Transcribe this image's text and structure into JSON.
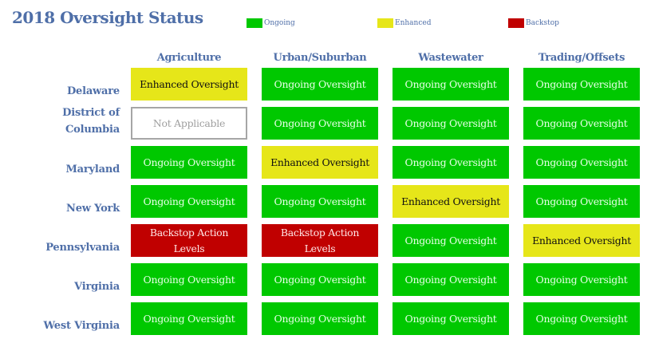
{
  "title": "2018 Oversight Status",
  "legend": [
    {
      "label": "Ongoing",
      "color": "#00c800"
    },
    {
      "label": "Enhanced",
      "color": "#e6e619"
    },
    {
      "label": "Backstop",
      "color": "#c00000"
    }
  ],
  "columns": [
    "Agriculture",
    "Urban/Suburban",
    "Wastewater",
    "Trading/Offsets"
  ],
  "rows": [
    {
      "label": "Delaware",
      "cells": [
        {
          "text": "Enhanced Oversight",
          "status": "enhanced"
        },
        {
          "text": "Ongoing Oversight",
          "status": "ongoing"
        },
        {
          "text": "Ongoing Oversight",
          "status": "ongoing"
        },
        {
          "text": "Ongoing Oversight",
          "status": "ongoing"
        }
      ]
    },
    {
      "label": "District of Columbia",
      "cells": [
        {
          "text": "Not Applicable",
          "status": "na"
        },
        {
          "text": "Ongoing Oversight",
          "status": "ongoing"
        },
        {
          "text": "Ongoing Oversight",
          "status": "ongoing"
        },
        {
          "text": "Ongoing Oversight",
          "status": "ongoing"
        }
      ]
    },
    {
      "label": "Maryland",
      "cells": [
        {
          "text": "Ongoing Oversight",
          "status": "ongoing"
        },
        {
          "text": "Enhanced Oversight",
          "status": "enhanced"
        },
        {
          "text": "Ongoing Oversight",
          "status": "ongoing"
        },
        {
          "text": "Ongoing Oversight",
          "status": "ongoing"
        }
      ]
    },
    {
      "label": "New York",
      "cells": [
        {
          "text": "Ongoing Oversight",
          "status": "ongoing"
        },
        {
          "text": "Ongoing Oversight",
          "status": "ongoing"
        },
        {
          "text": "Enhanced Oversight",
          "status": "enhanced"
        },
        {
          "text": "Ongoing Oversight",
          "status": "ongoing"
        }
      ]
    },
    {
      "label": "Pennsylvania",
      "cells": [
        {
          "text": "Backstop Action Levels",
          "status": "backstop"
        },
        {
          "text": "Backstop Action Levels",
          "status": "backstop"
        },
        {
          "text": "Ongoing Oversight",
          "status": "ongoing"
        },
        {
          "text": "Enhanced Oversight",
          "status": "enhanced"
        }
      ]
    },
    {
      "label": "Virginia",
      "cells": [
        {
          "text": "Ongoing Oversight",
          "status": "ongoing"
        },
        {
          "text": "Ongoing Oversight",
          "status": "ongoing"
        },
        {
          "text": "Ongoing Oversight",
          "status": "ongoing"
        },
        {
          "text": "Ongoing Oversight",
          "status": "ongoing"
        }
      ]
    },
    {
      "label": "West Virginia",
      "cells": [
        {
          "text": "Ongoing Oversight",
          "status": "ongoing"
        },
        {
          "text": "Ongoing Oversight",
          "status": "ongoing"
        },
        {
          "text": "Ongoing Oversight",
          "status": "ongoing"
        },
        {
          "text": "Ongoing Oversight",
          "status": "ongoing"
        }
      ]
    }
  ]
}
